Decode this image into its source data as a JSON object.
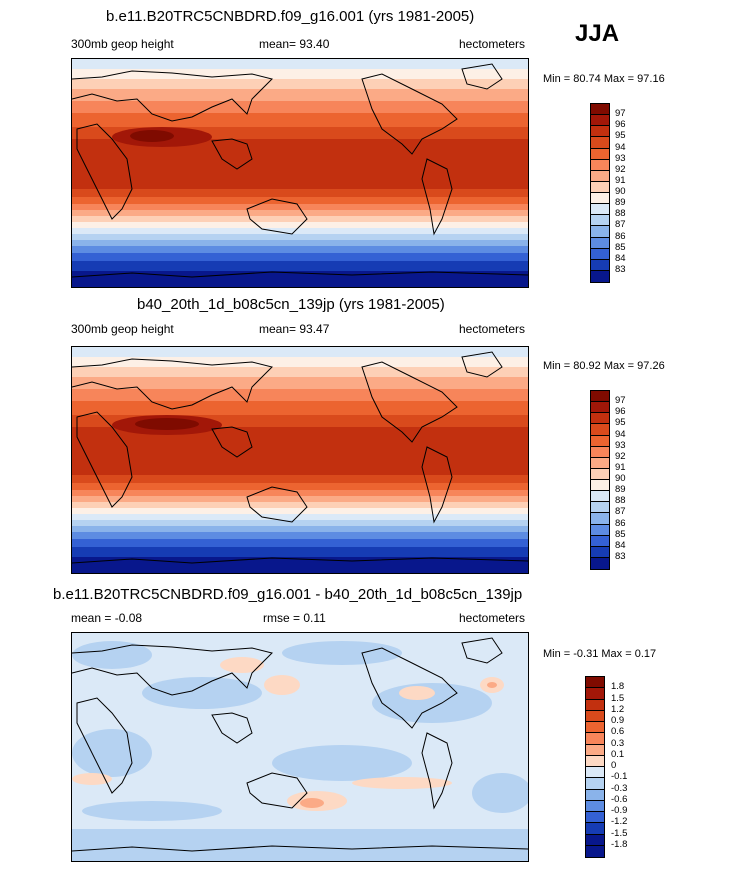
{
  "season": "JJA",
  "panels": [
    {
      "title": "b.e11.B20TRC5CNBDRD.f09_g16.001 (yrs 1981-2005)",
      "left": "300mb geop height",
      "center": "mean=  93.40",
      "right": "hectometers",
      "minmax": "Min =  80.74 Max =  97.16"
    },
    {
      "title": "b40_20th_1d_b08c5cn_139jp (yrs 1981-2005)",
      "left": "300mb geop height",
      "center": "mean=  93.47",
      "right": "hectometers",
      "minmax": "Min =  80.92 Max =  97.26"
    },
    {
      "title": "b.e11.B20TRC5CNBDRD.f09_g16.001 - b40_20th_1d_b08c5cn_139jp",
      "left": "mean =  -0.08",
      "center": "rmse =   0.11",
      "right": "hectometers",
      "minmax": "Min =  -0.31 Max =   0.17"
    }
  ],
  "colorbars": {
    "absolute": {
      "labels": [
        "97",
        "96",
        "95",
        "94",
        "93",
        "92",
        "91",
        "90",
        "89",
        "88",
        "87",
        "86",
        "85",
        "84",
        "83"
      ],
      "colors": [
        "#7f0b00",
        "#a21708",
        "#c2300f",
        "#d94a1c",
        "#ec6430",
        "#f7855a",
        "#fbaa86",
        "#fdd0b6",
        "#fdf0e6",
        "#dbe9f7",
        "#b5d2f1",
        "#8ab3ea",
        "#5d8ce2",
        "#3461d4",
        "#163cb4",
        "#08178c"
      ]
    },
    "difference": {
      "labels": [
        "1.8",
        "1.5",
        "1.2",
        "0.9",
        "0.6",
        "0.3",
        "0.1",
        "0",
        "-0.1",
        "-0.3",
        "-0.6",
        "-0.9",
        "-1.2",
        "-1.5",
        "-1.8"
      ],
      "colors": [
        "#7f0b00",
        "#a21708",
        "#c2300f",
        "#d94a1c",
        "#ec6430",
        "#f7855a",
        "#fbaa86",
        "#fdd9c4",
        "#dbe9f7",
        "#b5d2f1",
        "#8ab3ea",
        "#5d8ce2",
        "#3461d4",
        "#163cb4",
        "#08178c",
        "#08178c"
      ]
    }
  }
}
